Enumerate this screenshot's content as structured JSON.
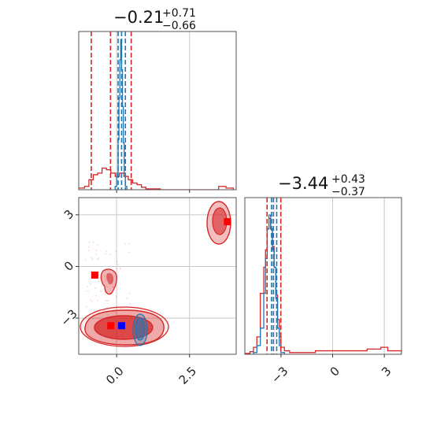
{
  "chart_data": {
    "type": "corner",
    "parameters": [
      "",
      ""
    ],
    "axis_ranges": {
      "p1": [
        -1.3,
        4.1
      ],
      "p2": [
        -5.1,
        4.0
      ]
    },
    "ticks": {
      "p1": {
        "values": [
          0.0,
          2.5
        ],
        "labels": [
          "0.0",
          "2.5"
        ]
      },
      "p2": {
        "values": [
          -3,
          0,
          3
        ],
        "labels": [
          "−3",
          "0",
          "3"
        ]
      }
    },
    "grid": true,
    "titles": [
      {
        "main": "−0.21",
        "sup": "+0.71",
        "sub": "−0.66"
      },
      {
        "main": "−3.44",
        "sup": "+0.43",
        "sub": "−0.37"
      }
    ],
    "series": [
      {
        "color": "#d62728",
        "p1_quantiles": [
          -0.87,
          -0.21,
          0.5
        ],
        "p2_quantiles": [
          -3.81,
          -3.44,
          -3.01
        ],
        "markers": [
          {
            "x": -0.2,
            "y": -3.44
          },
          {
            "x": -0.75,
            "y": -0.5
          },
          {
            "x": 3.8,
            "y": 2.6
          }
        ],
        "hist_p1": {
          "edges": [
            -1.3,
            -1.1,
            -0.95,
            -0.8,
            -0.65,
            -0.5,
            -0.35,
            -0.2,
            -0.05,
            0.1,
            0.25,
            0.4,
            0.55,
            0.7,
            0.85,
            1.0,
            1.5,
            3.0,
            3.5,
            3.75,
            4.0
          ],
          "counts": [
            0.01,
            0.02,
            0.06,
            0.09,
            0.1,
            0.13,
            0.12,
            0.1,
            0.08,
            0.1,
            0.08,
            0.06,
            0.04,
            0.03,
            0.015,
            0.005,
            0.0,
            0.0,
            0.02,
            0.01
          ]
        },
        "hist_p2": {
          "edges": [
            -5.1,
            -4.8,
            -4.6,
            -4.4,
            -4.2,
            -4.0,
            -3.9,
            -3.8,
            -3.7,
            -3.6,
            -3.5,
            -3.4,
            -3.3,
            -3.2,
            -3.1,
            -3.0,
            -2.8,
            -2.5,
            -1.0,
            0.0,
            1.0,
            2.0,
            2.8,
            3.2,
            4.0
          ],
          "counts": [
            0.005,
            0.015,
            0.04,
            0.1,
            0.35,
            0.5,
            0.6,
            0.72,
            0.78,
            0.72,
            0.62,
            0.5,
            0.34,
            0.2,
            0.1,
            0.04,
            0.02,
            0.01,
            0.02,
            0.02,
            0.02,
            0.03,
            0.04,
            0.02
          ]
        }
      },
      {
        "color": "#1f77b4",
        "p1_quantiles": [
          0.05,
          0.17,
          0.3
        ],
        "p2_quantiles": [
          -3.55,
          -3.44,
          -3.25
        ],
        "markers": [
          {
            "x": 0.17,
            "y": -3.44
          }
        ],
        "hist_p1": {
          "edges": [
            -0.05,
            0.0,
            0.05,
            0.08,
            0.11,
            0.14,
            0.17,
            0.2,
            0.23,
            0.26,
            0.3,
            0.35
          ],
          "counts": [
            0.02,
            0.1,
            0.3,
            0.55,
            0.78,
            0.9,
            0.72,
            0.5,
            0.28,
            0.1,
            0.02
          ]
        },
        "hist_p2": {
          "edges": [
            -4.6,
            -4.4,
            -4.2,
            -4.0,
            -3.9,
            -3.8,
            -3.7,
            -3.6,
            -3.5,
            -3.4,
            -3.3,
            -3.2,
            -3.1,
            -3.0,
            -2.8
          ],
          "counts": [
            0.01,
            0.05,
            0.15,
            0.35,
            0.55,
            0.72,
            0.8,
            0.72,
            0.6,
            0.5,
            0.32,
            0.15,
            0.05,
            0.01
          ]
        }
      }
    ]
  }
}
